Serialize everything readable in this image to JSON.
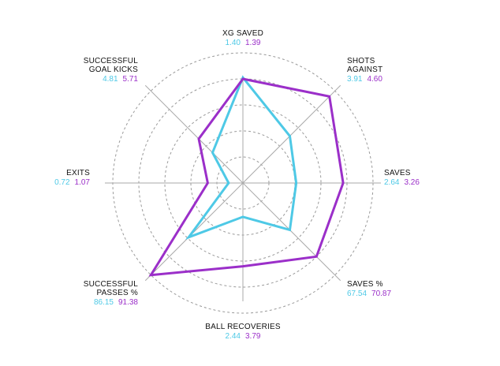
{
  "chart_data": {
    "type": "radar",
    "colors": {
      "cyan": "#4ec9e6",
      "purple": "#9b2fc9",
      "grid": "#9a9a9a",
      "text": "#111111"
    },
    "axes": [
      {
        "name_lines": [
          "XG SAVED"
        ],
        "values": [
          "1.40",
          "1.39"
        ]
      },
      {
        "name_lines": [
          "SHOTS",
          "AGAINST"
        ],
        "values": [
          "3.91",
          "4.60"
        ]
      },
      {
        "name_lines": [
          "SAVES"
        ],
        "values": [
          "2.64",
          "3.26"
        ]
      },
      {
        "name_lines": [
          "SAVES %"
        ],
        "values": [
          "67.54",
          "70.87"
        ]
      },
      {
        "name_lines": [
          "BALL RECOVERIES"
        ],
        "values": [
          "2.44",
          "3.79"
        ]
      },
      {
        "name_lines": [
          "SUCCESSFUL",
          "PASSES %"
        ],
        "values": [
          "86.15",
          "91.38"
        ]
      },
      {
        "name_lines": [
          "EXITS"
        ],
        "values": [
          "0.72",
          "1.07"
        ]
      },
      {
        "name_lines": [
          "SUCCESSFUL",
          "GOAL KICKS"
        ],
        "values": [
          "4.81",
          "5.71"
        ]
      }
    ],
    "series": [
      {
        "color": "cyan",
        "normalized": [
          0.81,
          0.51,
          0.41,
          0.51,
          0.26,
          0.59,
          0.11,
          0.33
        ]
      },
      {
        "color": "purple",
        "normalized": [
          0.8,
          0.94,
          0.77,
          0.8,
          0.64,
          1.0,
          0.27,
          0.48
        ]
      }
    ],
    "rings": 5,
    "grid": true
  }
}
